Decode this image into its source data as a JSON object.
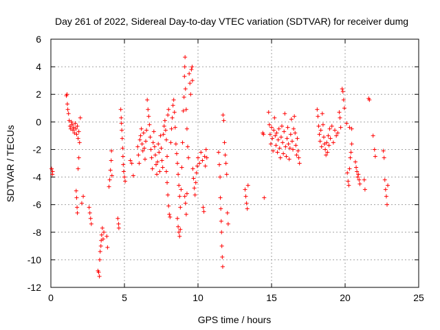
{
  "chart_data": {
    "type": "scatter",
    "title": "Day 261 of 2022, Sidereal Day-to-day VTEC variation (SDTVAR) for receiver dumg",
    "xlabel": "GPS time / hours",
    "ylabel": "SDTVAR / TECUs",
    "xlim": [
      0,
      25
    ],
    "ylim": [
      -12,
      6
    ],
    "x_ticks": [
      0,
      5,
      10,
      15,
      20,
      25
    ],
    "x_tick_labels": [
      "0",
      "5",
      "10",
      "15",
      "20",
      "25"
    ],
    "y_ticks": [
      -12,
      -10,
      -8,
      -6,
      -4,
      -2,
      0,
      2,
      4,
      6
    ],
    "y_tick_labels": [
      "-12",
      "-10",
      "-8",
      "-6",
      "-4",
      "-2",
      "0",
      "2",
      "4",
      "6"
    ],
    "grid": true,
    "marker": "+",
    "color": "#ff0000",
    "series": [
      {
        "name": "SDTVAR",
        "points": [
          [
            0.05,
            -3.4
          ],
          [
            0.1,
            -3.8
          ],
          [
            0.12,
            -3.6
          ],
          [
            1.05,
            1.9
          ],
          [
            1.1,
            2.0
          ],
          [
            1.12,
            1.3
          ],
          [
            1.15,
            0.9
          ],
          [
            1.2,
            0.6
          ],
          [
            1.25,
            0.1
          ],
          [
            1.3,
            -0.3
          ],
          [
            1.35,
            -0.5
          ],
          [
            1.4,
            0.0
          ],
          [
            1.45,
            -0.2
          ],
          [
            1.5,
            -0.6
          ],
          [
            1.55,
            -0.4
          ],
          [
            1.6,
            -0.8
          ],
          [
            1.65,
            -0.1
          ],
          [
            1.7,
            -0.5
          ],
          [
            1.75,
            -0.9
          ],
          [
            1.8,
            -0.3
          ],
          [
            1.85,
            -1.2
          ],
          [
            1.9,
            -0.7
          ],
          [
            1.95,
            -1.5
          ],
          [
            2.0,
            0.3
          ],
          [
            1.72,
            -5.0
          ],
          [
            1.75,
            -5.5
          ],
          [
            1.78,
            -6.2
          ],
          [
            1.8,
            -6.6
          ],
          [
            1.85,
            -3.4
          ],
          [
            1.9,
            -2.6
          ],
          [
            2.1,
            -5.9
          ],
          [
            2.2,
            -5.4
          ],
          [
            2.6,
            -6.2
          ],
          [
            2.65,
            -6.6
          ],
          [
            2.7,
            -7.0
          ],
          [
            2.75,
            -7.4
          ],
          [
            3.2,
            -10.8
          ],
          [
            3.25,
            -10.9
          ],
          [
            3.3,
            -11.2
          ],
          [
            3.32,
            -10.0
          ],
          [
            3.35,
            -9.4
          ],
          [
            3.4,
            -9.0
          ],
          [
            3.42,
            -8.6
          ],
          [
            3.45,
            -8.2
          ],
          [
            3.5,
            -7.7
          ],
          [
            3.55,
            -8.5
          ],
          [
            3.6,
            -8.0
          ],
          [
            3.8,
            -8.3
          ],
          [
            3.85,
            -9.1
          ],
          [
            3.95,
            -4.7
          ],
          [
            4.0,
            -4.2
          ],
          [
            4.05,
            -3.5
          ],
          [
            4.1,
            -2.8
          ],
          [
            4.12,
            -2.1
          ],
          [
            4.15,
            -3.9
          ],
          [
            4.55,
            -7.0
          ],
          [
            4.6,
            -7.4
          ],
          [
            4.62,
            -7.7
          ],
          [
            4.75,
            0.9
          ],
          [
            4.78,
            0.3
          ],
          [
            4.8,
            -0.1
          ],
          [
            4.82,
            -0.6
          ],
          [
            4.85,
            -1.2
          ],
          [
            4.88,
            -1.9
          ],
          [
            4.9,
            -2.5
          ],
          [
            4.92,
            -3.1
          ],
          [
            4.95,
            -3.6
          ],
          [
            5.0,
            -4.0
          ],
          [
            5.05,
            -4.3
          ],
          [
            5.4,
            -2.8
          ],
          [
            5.5,
            -3.0
          ],
          [
            5.6,
            -3.9
          ],
          [
            5.9,
            -1.8
          ],
          [
            5.95,
            -2.4
          ],
          [
            6.0,
            -3.0
          ],
          [
            6.05,
            -1.3
          ],
          [
            6.1,
            -1.0
          ],
          [
            6.15,
            -0.5
          ],
          [
            6.2,
            -1.6
          ],
          [
            6.25,
            -2.1
          ],
          [
            6.3,
            -0.8
          ],
          [
            6.35,
            -1.9
          ],
          [
            6.4,
            -2.7
          ],
          [
            6.45,
            -1.4
          ],
          [
            6.5,
            -0.6
          ],
          [
            6.55,
            1.6
          ],
          [
            6.6,
            0.9
          ],
          [
            6.65,
            0.4
          ],
          [
            6.7,
            -0.2
          ],
          [
            6.75,
            -1.1
          ],
          [
            6.8,
            -2.0
          ],
          [
            6.85,
            -2.6
          ],
          [
            6.9,
            -3.4
          ],
          [
            6.95,
            -1.5
          ],
          [
            7.0,
            -0.7
          ],
          [
            7.05,
            -1.8
          ],
          [
            7.1,
            -2.4
          ],
          [
            7.15,
            -3.1
          ],
          [
            7.2,
            -3.8
          ],
          [
            7.25,
            -2.9
          ],
          [
            7.3,
            -1.6
          ],
          [
            7.35,
            -2.2
          ],
          [
            7.4,
            -3.6
          ],
          [
            7.45,
            -1.0
          ],
          [
            7.5,
            -1.9
          ],
          [
            7.55,
            -2.8
          ],
          [
            7.6,
            -3.3
          ],
          [
            7.65,
            -0.9
          ],
          [
            7.7,
            -0.3
          ],
          [
            7.75,
            0.1
          ],
          [
            7.8,
            -0.6
          ],
          [
            7.85,
            -1.3
          ],
          [
            7.9,
            -2.5
          ],
          [
            7.95,
            0.5
          ],
          [
            8.0,
            0.9
          ],
          [
            7.85,
            -3.6
          ],
          [
            7.9,
            -4.4
          ],
          [
            7.95,
            -5.3
          ],
          [
            8.0,
            -6.1
          ],
          [
            8.05,
            -6.7
          ],
          [
            8.1,
            -6.9
          ],
          [
            8.15,
            -1.5
          ],
          [
            8.2,
            -0.5
          ],
          [
            8.25,
            0.3
          ],
          [
            8.3,
            1.2
          ],
          [
            8.35,
            1.6
          ],
          [
            8.4,
            0.7
          ],
          [
            8.45,
            -0.4
          ],
          [
            8.5,
            -1.6
          ],
          [
            8.55,
            -2.3
          ],
          [
            8.6,
            -3.0
          ],
          [
            8.65,
            -3.8
          ],
          [
            8.7,
            -4.6
          ],
          [
            8.75,
            -5.4
          ],
          [
            8.8,
            -6.2
          ],
          [
            8.6,
            -7.0
          ],
          [
            8.65,
            -7.6
          ],
          [
            8.7,
            -8.0
          ],
          [
            8.75,
            -8.3
          ],
          [
            8.8,
            -7.8
          ],
          [
            8.85,
            -4.9
          ],
          [
            8.9,
            -3.3
          ],
          [
            8.95,
            -1.5
          ],
          [
            9.0,
            0.8
          ],
          [
            9.05,
            1.8
          ],
          [
            9.08,
            3.3
          ],
          [
            9.1,
            4.0
          ],
          [
            9.12,
            4.7
          ],
          [
            9.15,
            2.4
          ],
          [
            9.2,
            0.9
          ],
          [
            9.25,
            -0.5
          ],
          [
            9.3,
            -1.8
          ],
          [
            9.35,
            -2.6
          ],
          [
            9.4,
            3.5
          ],
          [
            9.45,
            2.8
          ],
          [
            9.5,
            2.0
          ],
          [
            9.1,
            -5.4
          ],
          [
            9.15,
            -5.9
          ],
          [
            9.2,
            -6.7
          ],
          [
            9.25,
            -5.2
          ],
          [
            9.55,
            3.8
          ],
          [
            9.6,
            4.0
          ],
          [
            9.62,
            3.0
          ],
          [
            9.65,
            -3.4
          ],
          [
            9.7,
            -4.1
          ],
          [
            9.75,
            -4.8
          ],
          [
            9.8,
            -5.3
          ],
          [
            9.85,
            -4.4
          ],
          [
            9.9,
            -3.7
          ],
          [
            9.95,
            -3.2
          ],
          [
            10.0,
            -2.6
          ],
          [
            10.1,
            -3.0
          ],
          [
            10.2,
            -2.2
          ],
          [
            10.3,
            -2.8
          ],
          [
            10.35,
            -6.2
          ],
          [
            10.4,
            -6.5
          ],
          [
            10.45,
            -2.5
          ],
          [
            10.5,
            -3.2
          ],
          [
            10.55,
            -2.0
          ],
          [
            10.6,
            -2.6
          ],
          [
            11.4,
            -2.2
          ],
          [
            11.45,
            -3.1
          ],
          [
            11.5,
            -4.0
          ],
          [
            11.52,
            -5.5
          ],
          [
            11.55,
            -6.3
          ],
          [
            11.58,
            -7.2
          ],
          [
            11.6,
            -8.0
          ],
          [
            11.62,
            -9.0
          ],
          [
            11.65,
            -9.8
          ],
          [
            11.68,
            -10.5
          ],
          [
            11.7,
            0.5
          ],
          [
            11.75,
            0.1
          ],
          [
            11.8,
            -1.5
          ],
          [
            11.85,
            -2.4
          ],
          [
            11.9,
            -3.0
          ],
          [
            11.95,
            -3.8
          ],
          [
            12.0,
            -6.6
          ],
          [
            12.05,
            -7.4
          ],
          [
            13.2,
            -4.9
          ],
          [
            13.25,
            -5.4
          ],
          [
            13.3,
            -5.9
          ],
          [
            13.35,
            -6.3
          ],
          [
            13.4,
            -4.6
          ],
          [
            14.4,
            -0.8
          ],
          [
            14.45,
            -0.9
          ],
          [
            14.5,
            -5.5
          ],
          [
            14.8,
            0.7
          ],
          [
            14.85,
            -0.2
          ],
          [
            14.9,
            -0.9
          ],
          [
            14.95,
            -1.6
          ],
          [
            15.0,
            -0.4
          ],
          [
            15.05,
            -1.2
          ],
          [
            15.1,
            -2.1
          ],
          [
            15.15,
            -0.6
          ],
          [
            15.2,
            0.3
          ],
          [
            15.25,
            -1.0
          ],
          [
            15.3,
            -1.7
          ],
          [
            15.35,
            -0.8
          ],
          [
            15.4,
            -2.2
          ],
          [
            15.45,
            -1.3
          ],
          [
            15.5,
            -0.5
          ],
          [
            15.55,
            -1.9
          ],
          [
            15.6,
            -2.6
          ],
          [
            15.65,
            -1.1
          ],
          [
            15.7,
            -0.3
          ],
          [
            15.75,
            -1.5
          ],
          [
            15.8,
            -2.3
          ],
          [
            15.85,
            -0.7
          ],
          [
            15.9,
            0.6
          ],
          [
            15.95,
            -1.8
          ],
          [
            16.0,
            -2.5
          ],
          [
            16.05,
            -1.2
          ],
          [
            16.1,
            -0.4
          ],
          [
            16.15,
            -1.6
          ],
          [
            16.2,
            -2.7
          ],
          [
            16.25,
            -1.9
          ],
          [
            16.3,
            -0.9
          ],
          [
            16.35,
            0.2
          ],
          [
            16.4,
            -1.4
          ],
          [
            16.45,
            -2.0
          ],
          [
            16.5,
            -0.5
          ],
          [
            16.55,
            0.4
          ],
          [
            16.6,
            -0.8
          ],
          [
            16.65,
            -1.7
          ],
          [
            16.7,
            -2.4
          ],
          [
            16.75,
            -1.2
          ],
          [
            16.8,
            -2.1
          ],
          [
            16.85,
            -2.6
          ],
          [
            16.9,
            -3.0
          ],
          [
            18.1,
            0.9
          ],
          [
            18.15,
            0.4
          ],
          [
            18.2,
            -0.3
          ],
          [
            18.25,
            -0.9
          ],
          [
            18.3,
            -1.4
          ],
          [
            18.35,
            -0.6
          ],
          [
            18.4,
            -1.8
          ],
          [
            18.45,
            0.6
          ],
          [
            18.5,
            -0.2
          ],
          [
            18.55,
            -1.1
          ],
          [
            18.6,
            -1.6
          ],
          [
            18.65,
            -2.0
          ],
          [
            18.7,
            -2.4
          ],
          [
            18.75,
            -1.5
          ],
          [
            18.8,
            -2.2
          ],
          [
            18.85,
            -1.0
          ],
          [
            18.9,
            -1.7
          ],
          [
            18.95,
            -0.5
          ],
          [
            19.0,
            -1.2
          ],
          [
            19.1,
            -0.3
          ],
          [
            19.2,
            -1.5
          ],
          [
            19.3,
            -0.6
          ],
          [
            19.4,
            -1.0
          ],
          [
            19.5,
            -0.8
          ],
          [
            19.6,
            0.7
          ],
          [
            19.65,
            0.3
          ],
          [
            19.7,
            -0.4
          ],
          [
            19.8,
            2.4
          ],
          [
            19.85,
            2.2
          ],
          [
            19.9,
            1.6
          ],
          [
            19.95,
            1.0
          ],
          [
            20.1,
            -0.1
          ],
          [
            20.15,
            -3.7
          ],
          [
            20.2,
            -4.3
          ],
          [
            20.25,
            -4.6
          ],
          [
            20.3,
            -3.4
          ],
          [
            20.35,
            -2.6
          ],
          [
            20.4,
            -2.2
          ],
          [
            20.45,
            -1.6
          ],
          [
            20.7,
            -2.9
          ],
          [
            20.75,
            -3.3
          ],
          [
            20.8,
            -3.6
          ],
          [
            20.85,
            -4.0
          ],
          [
            20.9,
            -3.8
          ],
          [
            20.95,
            -4.2
          ],
          [
            21.0,
            -4.5
          ],
          [
            20.3,
            -0.4
          ],
          [
            20.45,
            -0.5
          ],
          [
            21.3,
            -4.2
          ],
          [
            21.35,
            -4.9
          ],
          [
            21.6,
            1.7
          ],
          [
            21.65,
            1.6
          ],
          [
            21.9,
            -1.0
          ],
          [
            22.0,
            -2.0
          ],
          [
            22.05,
            -2.5
          ],
          [
            22.6,
            -2.1
          ],
          [
            22.65,
            -2.6
          ],
          [
            22.7,
            -4.2
          ],
          [
            22.75,
            -4.9
          ],
          [
            22.8,
            -5.4
          ],
          [
            22.85,
            -6.0
          ],
          [
            22.9,
            -4.6
          ]
        ]
      }
    ]
  }
}
